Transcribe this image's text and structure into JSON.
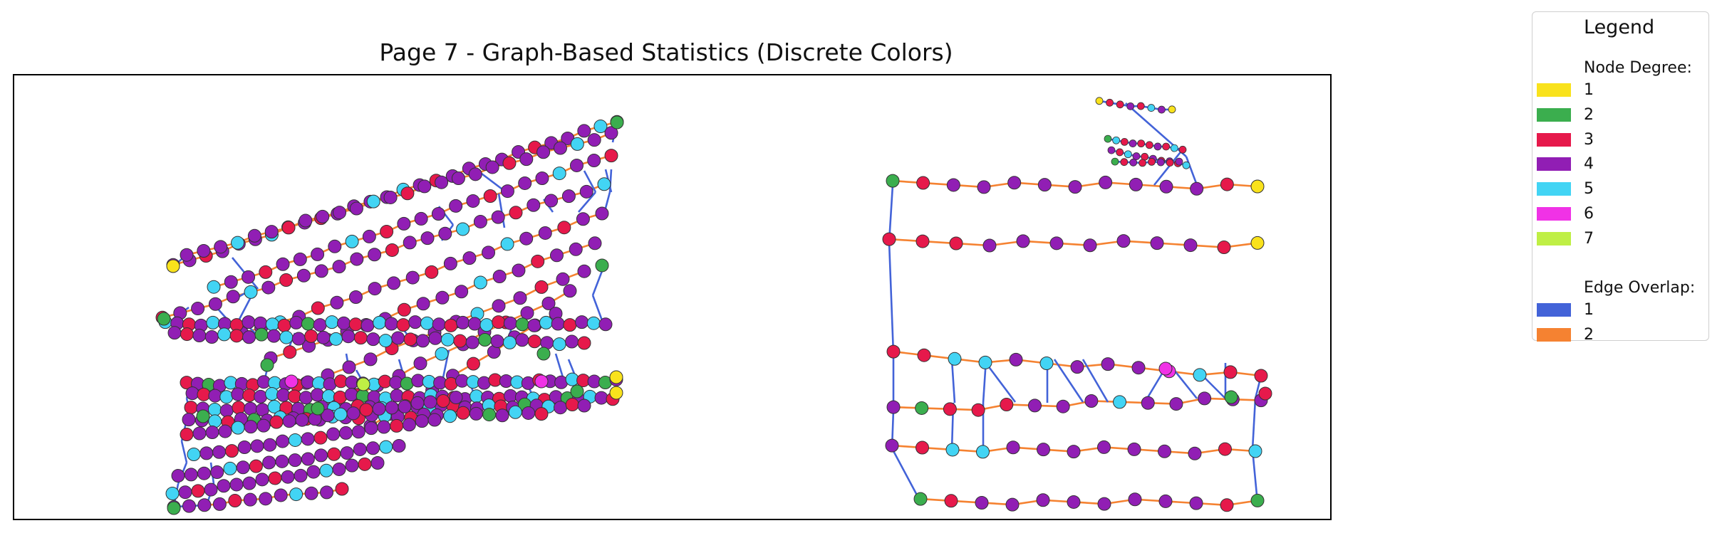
{
  "title": "Page 7 - Graph-Based Statistics (Discrete Colors)",
  "colors": {
    "node_degree": {
      "1": "#f9e21c",
      "2": "#3bae4e",
      "3": "#e6194b",
      "4": "#911eb4",
      "5": "#42d4f4",
      "6": "#f032e6",
      "7": "#bfef45"
    },
    "edge_overlap": {
      "1": "#4363d8",
      "2": "#f58231"
    },
    "node_outline": "#333333",
    "frame": "#000000"
  },
  "legend": {
    "title": "Legend",
    "node_section": "Node Degree:",
    "node_items": [
      {
        "label": "1",
        "color": "#f9e21c"
      },
      {
        "label": "2",
        "color": "#3bae4e"
      },
      {
        "label": "3",
        "color": "#e6194b"
      },
      {
        "label": "4",
        "color": "#911eb4"
      },
      {
        "label": "5",
        "color": "#42d4f4"
      },
      {
        "label": "6",
        "color": "#f032e6"
      },
      {
        "label": "7",
        "color": "#bfef45"
      }
    ],
    "edge_section": "Edge Overlap:",
    "edge_items": [
      {
        "label": "1",
        "color": "#4363d8"
      },
      {
        "label": "2",
        "color": "#f58231"
      }
    ]
  }
}
